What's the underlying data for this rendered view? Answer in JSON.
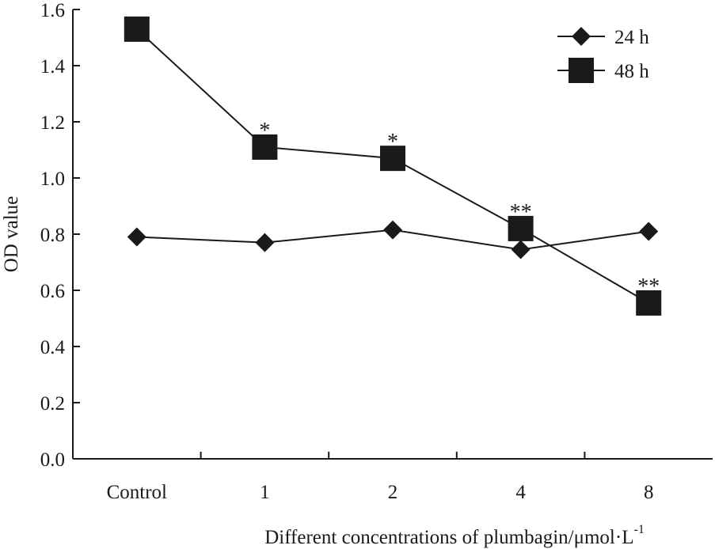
{
  "chart_data": {
    "type": "line",
    "categories": [
      "Control",
      "1",
      "2",
      "4",
      "8"
    ],
    "series": [
      {
        "name": "24 h",
        "marker": "diamond",
        "values": [
          0.79,
          0.77,
          0.815,
          0.745,
          0.81
        ]
      },
      {
        "name": "48 h",
        "marker": "square",
        "values": [
          1.53,
          1.11,
          1.07,
          0.82,
          0.555
        ]
      }
    ],
    "annotations": [
      {
        "series": 1,
        "index": 1,
        "text": "*"
      },
      {
        "series": 1,
        "index": 2,
        "text": "*"
      },
      {
        "series": 1,
        "index": 3,
        "text": "**"
      },
      {
        "series": 1,
        "index": 4,
        "text": "**"
      }
    ],
    "xlabel": "Different concentrations of plumbagin/μmol·L",
    "xlabel_superscript": "-1",
    "ylabel": "OD value",
    "ylim": [
      0,
      1.6
    ],
    "yticks": [
      "0.0",
      "0.2",
      "0.4",
      "0.6",
      "0.8",
      "1.0",
      "1.2",
      "1.4",
      "1.6"
    ],
    "grid": false,
    "legend_position": "top-right",
    "colors": {
      "axis": "#1a1a1a",
      "line": "#1a1a1a",
      "marker": "#1a1a1a"
    }
  }
}
